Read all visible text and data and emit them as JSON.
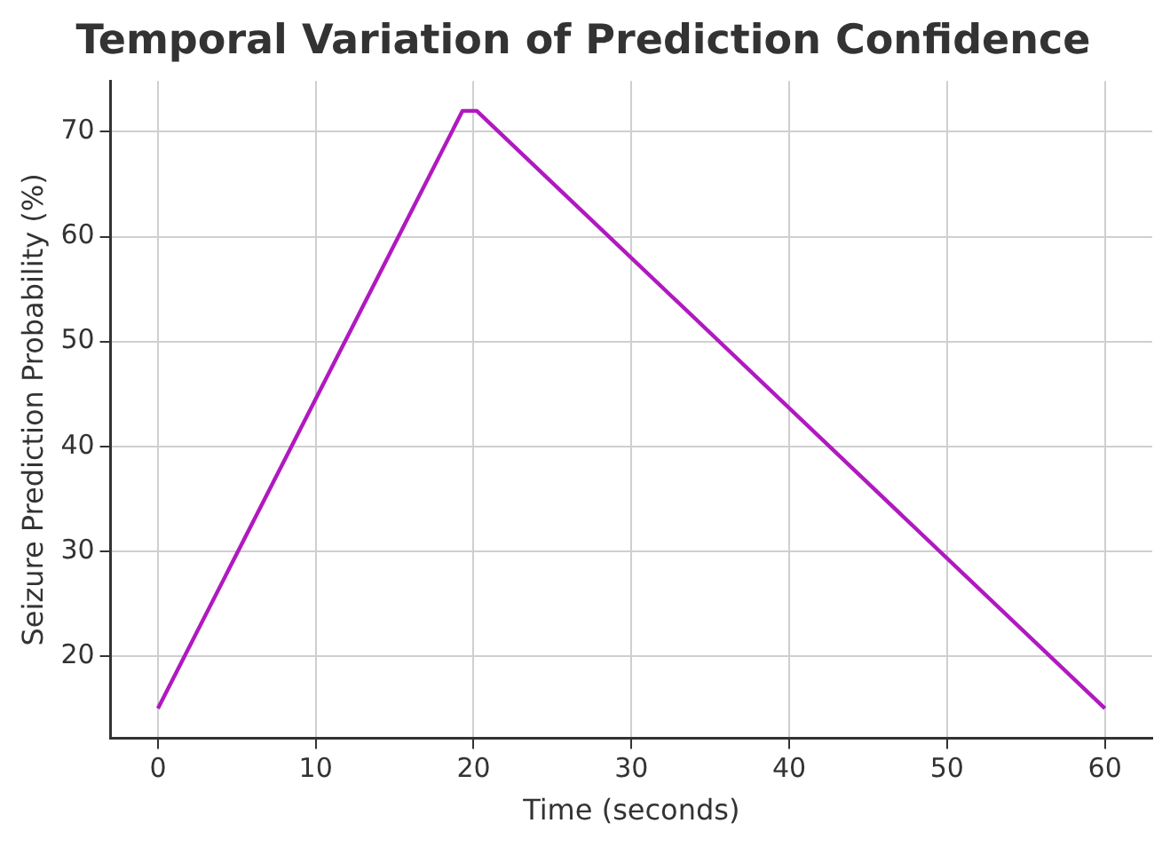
{
  "chart_data": {
    "type": "line",
    "title": "Temporal Variation of Prediction Confidence",
    "xlabel": "Time (seconds)",
    "ylabel": "Seizure Prediction Probability (%)",
    "x": [
      0,
      19.3,
      20.2,
      60
    ],
    "series": [
      {
        "color": "#b019c0",
        "values": [
          15,
          72,
          72,
          15
        ]
      }
    ],
    "xlim": [
      -3,
      63
    ],
    "ylim": [
      12.15,
      74.85
    ],
    "xticks": [
      0,
      10,
      20,
      30,
      40,
      50,
      60
    ],
    "yticks": [
      20,
      30,
      40,
      50,
      60,
      70
    ],
    "grid": true,
    "legend": false,
    "marker": "none",
    "line_style": "solid"
  }
}
